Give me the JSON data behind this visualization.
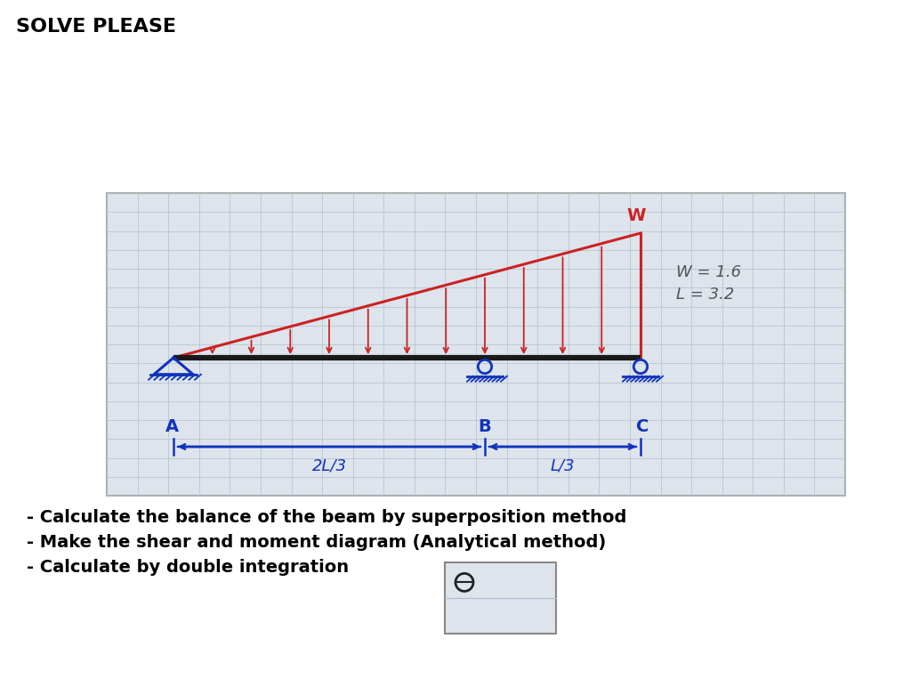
{
  "title": "SOLVE PLEASE",
  "beam_color": "#1a1a1a",
  "load_color": "#cc2222",
  "support_color": "#1133bb",
  "W_label": "W",
  "W_value": "1.6",
  "L_value": "3.2",
  "params_line1": "W = 1.6",
  "params_line2": "L = 3.2",
  "dist_AB": "2L/3",
  "dist_BC": "L/3",
  "instructions": [
    "- Calculate the balance of the beam by superposition method",
    "- Make the shear and moment diagram (Analytical method)",
    "- Calculate by double integration"
  ],
  "outer_bg": "#ffffff",
  "paper_bg": "#dde4ec",
  "grid_color": "#b0bece",
  "title_fontsize": 16,
  "instr_fontsize": 14
}
